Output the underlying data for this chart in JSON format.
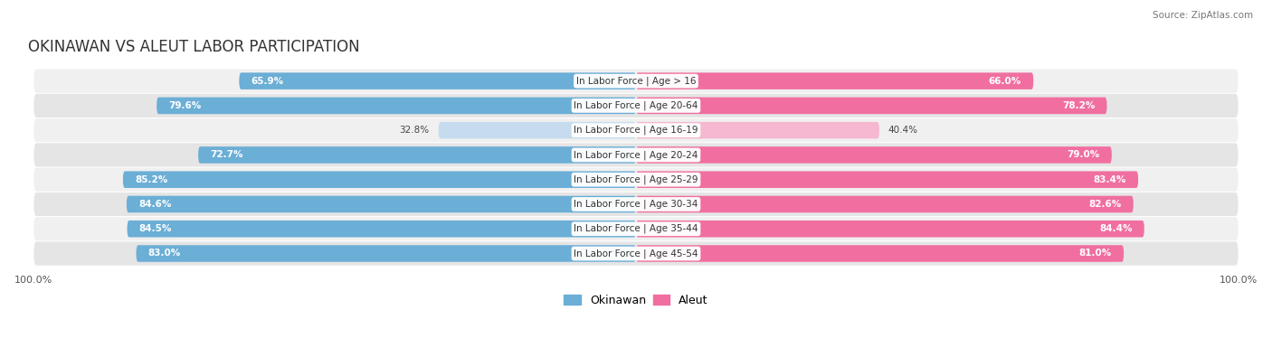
{
  "title": "OKINAWAN VS ALEUT LABOR PARTICIPATION",
  "source": "Source: ZipAtlas.com",
  "categories": [
    "In Labor Force | Age > 16",
    "In Labor Force | Age 20-64",
    "In Labor Force | Age 16-19",
    "In Labor Force | Age 20-24",
    "In Labor Force | Age 25-29",
    "In Labor Force | Age 30-34",
    "In Labor Force | Age 35-44",
    "In Labor Force | Age 45-54"
  ],
  "okinawan": [
    65.9,
    79.6,
    32.8,
    72.7,
    85.2,
    84.6,
    84.5,
    83.0
  ],
  "aleut": [
    66.0,
    78.2,
    40.4,
    79.0,
    83.4,
    82.6,
    84.4,
    81.0
  ],
  "okinawan_color": "#6BAED6",
  "aleut_color": "#F06FA0",
  "okinawan_light_color": "#C6DCEE",
  "aleut_light_color": "#F5B8D0",
  "row_bg_color_odd": "#F0F0F0",
  "row_bg_color_even": "#E5E5E5",
  "max_val": 100.0,
  "title_fontsize": 12,
  "label_fontsize": 7.5,
  "value_fontsize": 7.5,
  "axis_fontsize": 8,
  "legend_fontsize": 9,
  "background_color": "#FFFFFF",
  "bar_height": 0.68
}
